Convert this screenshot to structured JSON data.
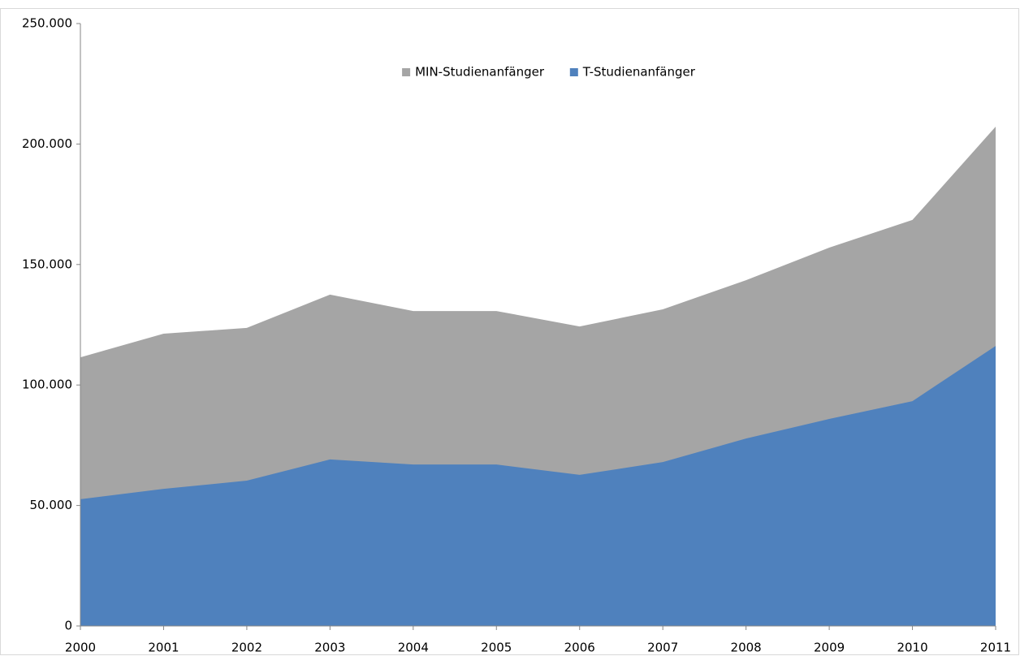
{
  "chart_data": {
    "type": "area",
    "categories": [
      "2000",
      "2001",
      "2002",
      "2003",
      "2004",
      "2005",
      "2006",
      "2007",
      "2008",
      "2009",
      "2010",
      "2011"
    ],
    "series": [
      {
        "name": "MIN-Studienanfänger",
        "color": "#a5a5a5",
        "values": [
          111500,
          121300,
          123700,
          137500,
          130700,
          130700,
          124300,
          131400,
          143500,
          157000,
          168500,
          207200
        ]
      },
      {
        "name": "T-Studienanfänger",
        "color": "#4f81bd",
        "values": [
          52600,
          56900,
          60300,
          69100,
          67000,
          67000,
          62700,
          68000,
          77800,
          85900,
          93300,
          116200
        ]
      }
    ],
    "ylim": [
      0,
      250000
    ],
    "yticks": [
      0,
      {
        "value": 50000,
        "label": "50.000"
      },
      {
        "value": 100000,
        "label": "100.000"
      },
      {
        "value": 150000,
        "label": "150.000"
      },
      {
        "value": 200000,
        "label": "200.000"
      },
      {
        "value": 250000,
        "label": "250.000"
      }
    ],
    "legend": "top"
  }
}
